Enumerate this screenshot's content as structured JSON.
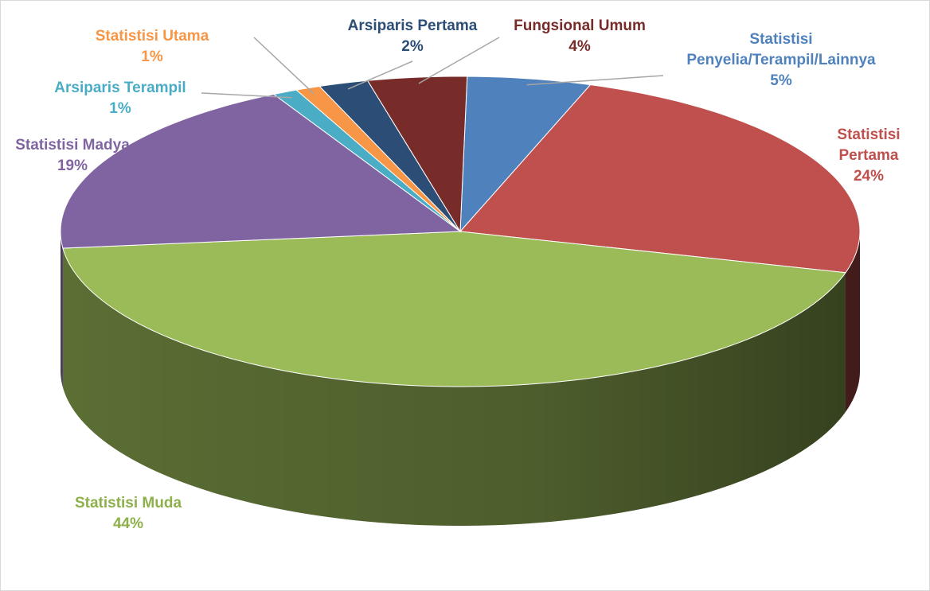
{
  "chart_data": {
    "type": "pie",
    "categories": [
      "Statistisi Penyelia/Terampil/Lainnya",
      "Statistisi Pertama",
      "Statistisi Muda",
      "Statistisi Madya",
      "Arsiparis Terampil",
      "Statistisi Utama",
      "Arsiparis Pertama",
      "Fungsional Umum"
    ],
    "values": [
      5,
      24,
      44,
      19,
      1,
      1,
      2,
      4
    ],
    "value_labels": [
      "5%",
      "24%",
      "44%",
      "19%",
      "1%",
      "1%",
      "2%",
      "4%"
    ],
    "colors": [
      "#4f81bd",
      "#c0504d",
      "#9bbb59",
      "#8064a2",
      "#4bacc6",
      "#f79646",
      "#2c4d75",
      "#772c2a"
    ]
  }
}
